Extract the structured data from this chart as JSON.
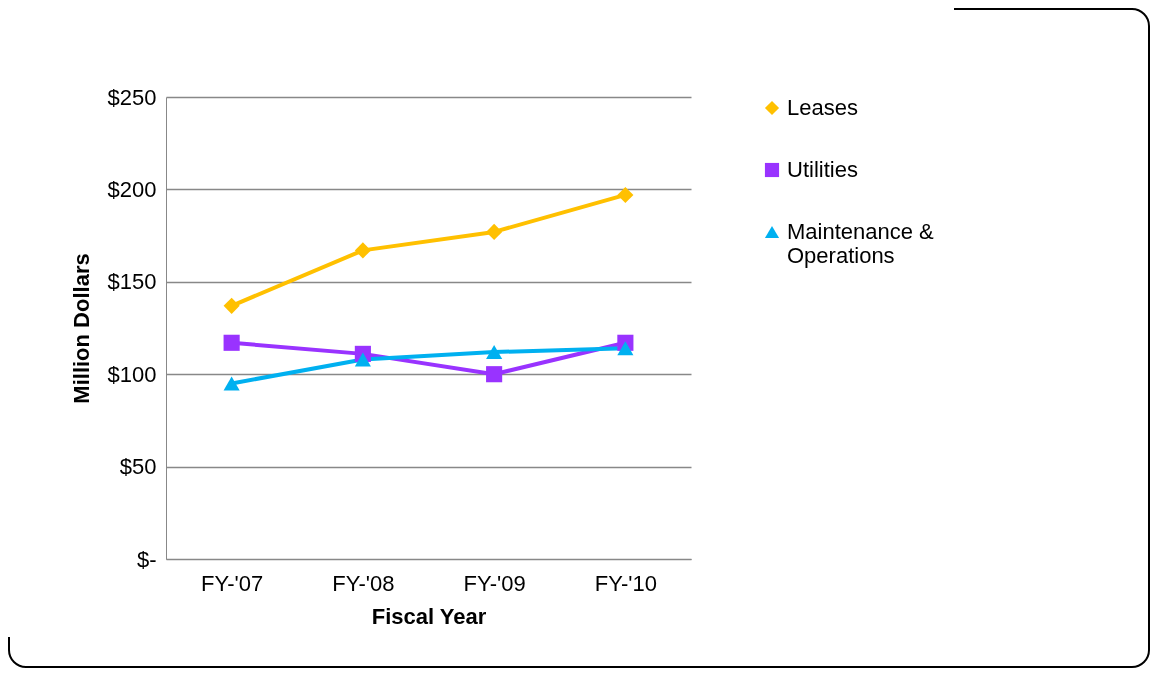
{
  "chart_data": {
    "type": "line",
    "xlabel": "Fiscal Year",
    "ylabel": "Million Dollars",
    "categories": [
      "FY-'07",
      "FY-'08",
      "FY-'09",
      "FY-'10"
    ],
    "series": [
      {
        "name": "Leases",
        "color": "#ffc000",
        "marker": "diamond",
        "values": [
          137,
          167,
          177,
          197
        ]
      },
      {
        "name": "Utilities",
        "color": "#9933ff",
        "marker": "square",
        "values": [
          117,
          111,
          100,
          117
        ]
      },
      {
        "name": "Maintenance & Operations",
        "color": "#00b0f0",
        "marker": "triangle",
        "values": [
          95,
          108,
          112,
          114
        ]
      }
    ],
    "ylim": [
      0,
      250
    ],
    "yticks": [
      {
        "value": 0,
        "label": "$-"
      },
      {
        "value": 50,
        "label": "$50"
      },
      {
        "value": 100,
        "label": "$100"
      },
      {
        "value": 150,
        "label": "$150"
      },
      {
        "value": 200,
        "label": "$200"
      },
      {
        "value": 250,
        "label": "$250"
      }
    ],
    "grid": "y",
    "legend": "right",
    "line_style": "solid"
  }
}
